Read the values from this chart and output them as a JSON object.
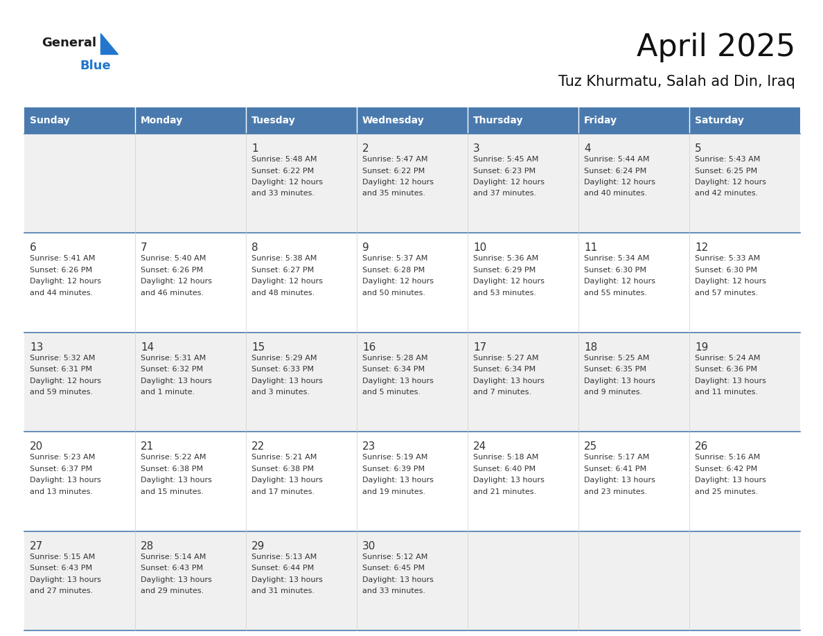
{
  "title": "April 2025",
  "subtitle": "Tuz Khurmatu, Salah ad Din, Iraq",
  "header_bg": "#4a7aad",
  "header_text": "#ffffff",
  "row_bg_1": "#f0f0f0",
  "row_bg_2": "#ffffff",
  "cell_border_color": "#4a7aad",
  "text_color": "#333333",
  "logo_text_color": "#1a1a1a",
  "logo_blue_color": "#2277cc",
  "logo_triangle_color": "#2277cc",
  "days_of_week": [
    "Sunday",
    "Monday",
    "Tuesday",
    "Wednesday",
    "Thursday",
    "Friday",
    "Saturday"
  ],
  "calendar_data": [
    [
      {
        "day": "",
        "info": ""
      },
      {
        "day": "",
        "info": ""
      },
      {
        "day": "1",
        "info": "Sunrise: 5:48 AM\nSunset: 6:22 PM\nDaylight: 12 hours\nand 33 minutes."
      },
      {
        "day": "2",
        "info": "Sunrise: 5:47 AM\nSunset: 6:22 PM\nDaylight: 12 hours\nand 35 minutes."
      },
      {
        "day": "3",
        "info": "Sunrise: 5:45 AM\nSunset: 6:23 PM\nDaylight: 12 hours\nand 37 minutes."
      },
      {
        "day": "4",
        "info": "Sunrise: 5:44 AM\nSunset: 6:24 PM\nDaylight: 12 hours\nand 40 minutes."
      },
      {
        "day": "5",
        "info": "Sunrise: 5:43 AM\nSunset: 6:25 PM\nDaylight: 12 hours\nand 42 minutes."
      }
    ],
    [
      {
        "day": "6",
        "info": "Sunrise: 5:41 AM\nSunset: 6:26 PM\nDaylight: 12 hours\nand 44 minutes."
      },
      {
        "day": "7",
        "info": "Sunrise: 5:40 AM\nSunset: 6:26 PM\nDaylight: 12 hours\nand 46 minutes."
      },
      {
        "day": "8",
        "info": "Sunrise: 5:38 AM\nSunset: 6:27 PM\nDaylight: 12 hours\nand 48 minutes."
      },
      {
        "day": "9",
        "info": "Sunrise: 5:37 AM\nSunset: 6:28 PM\nDaylight: 12 hours\nand 50 minutes."
      },
      {
        "day": "10",
        "info": "Sunrise: 5:36 AM\nSunset: 6:29 PM\nDaylight: 12 hours\nand 53 minutes."
      },
      {
        "day": "11",
        "info": "Sunrise: 5:34 AM\nSunset: 6:30 PM\nDaylight: 12 hours\nand 55 minutes."
      },
      {
        "day": "12",
        "info": "Sunrise: 5:33 AM\nSunset: 6:30 PM\nDaylight: 12 hours\nand 57 minutes."
      }
    ],
    [
      {
        "day": "13",
        "info": "Sunrise: 5:32 AM\nSunset: 6:31 PM\nDaylight: 12 hours\nand 59 minutes."
      },
      {
        "day": "14",
        "info": "Sunrise: 5:31 AM\nSunset: 6:32 PM\nDaylight: 13 hours\nand 1 minute."
      },
      {
        "day": "15",
        "info": "Sunrise: 5:29 AM\nSunset: 6:33 PM\nDaylight: 13 hours\nand 3 minutes."
      },
      {
        "day": "16",
        "info": "Sunrise: 5:28 AM\nSunset: 6:34 PM\nDaylight: 13 hours\nand 5 minutes."
      },
      {
        "day": "17",
        "info": "Sunrise: 5:27 AM\nSunset: 6:34 PM\nDaylight: 13 hours\nand 7 minutes."
      },
      {
        "day": "18",
        "info": "Sunrise: 5:25 AM\nSunset: 6:35 PM\nDaylight: 13 hours\nand 9 minutes."
      },
      {
        "day": "19",
        "info": "Sunrise: 5:24 AM\nSunset: 6:36 PM\nDaylight: 13 hours\nand 11 minutes."
      }
    ],
    [
      {
        "day": "20",
        "info": "Sunrise: 5:23 AM\nSunset: 6:37 PM\nDaylight: 13 hours\nand 13 minutes."
      },
      {
        "day": "21",
        "info": "Sunrise: 5:22 AM\nSunset: 6:38 PM\nDaylight: 13 hours\nand 15 minutes."
      },
      {
        "day": "22",
        "info": "Sunrise: 5:21 AM\nSunset: 6:38 PM\nDaylight: 13 hours\nand 17 minutes."
      },
      {
        "day": "23",
        "info": "Sunrise: 5:19 AM\nSunset: 6:39 PM\nDaylight: 13 hours\nand 19 minutes."
      },
      {
        "day": "24",
        "info": "Sunrise: 5:18 AM\nSunset: 6:40 PM\nDaylight: 13 hours\nand 21 minutes."
      },
      {
        "day": "25",
        "info": "Sunrise: 5:17 AM\nSunset: 6:41 PM\nDaylight: 13 hours\nand 23 minutes."
      },
      {
        "day": "26",
        "info": "Sunrise: 5:16 AM\nSunset: 6:42 PM\nDaylight: 13 hours\nand 25 minutes."
      }
    ],
    [
      {
        "day": "27",
        "info": "Sunrise: 5:15 AM\nSunset: 6:43 PM\nDaylight: 13 hours\nand 27 minutes."
      },
      {
        "day": "28",
        "info": "Sunrise: 5:14 AM\nSunset: 6:43 PM\nDaylight: 13 hours\nand 29 minutes."
      },
      {
        "day": "29",
        "info": "Sunrise: 5:13 AM\nSunset: 6:44 PM\nDaylight: 13 hours\nand 31 minutes."
      },
      {
        "day": "30",
        "info": "Sunrise: 5:12 AM\nSunset: 6:45 PM\nDaylight: 13 hours\nand 33 minutes."
      },
      {
        "day": "",
        "info": ""
      },
      {
        "day": "",
        "info": ""
      },
      {
        "day": "",
        "info": ""
      }
    ]
  ],
  "fig_width": 11.88,
  "fig_height": 9.18,
  "dpi": 100
}
